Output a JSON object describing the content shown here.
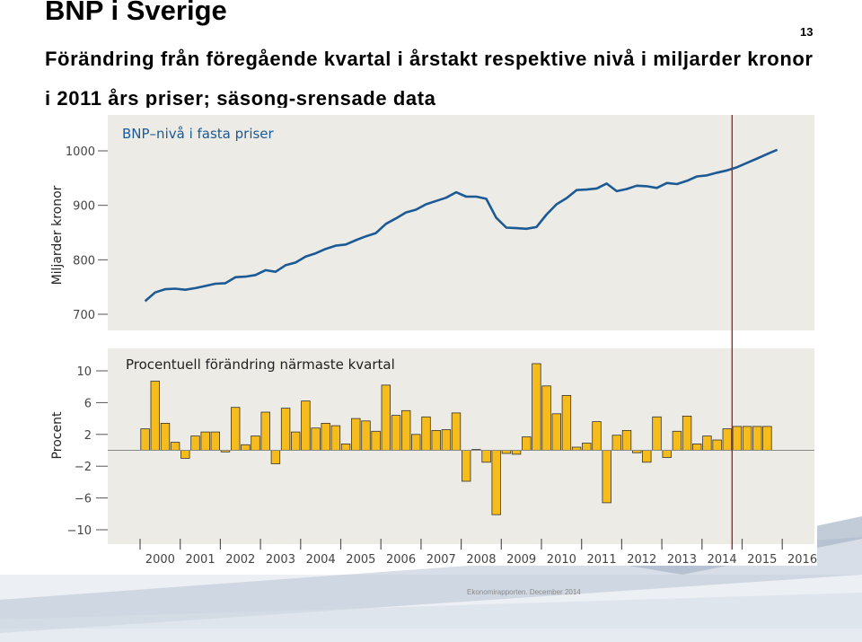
{
  "header": {
    "title": "BNP i Sverige",
    "subtitle": "Förändring från föregående kvartal i årstakt respektive nivå i miljarder kronor i 2011 års priser; säsong-srensade data",
    "page_number": "13"
  },
  "footer": {
    "text": "Ekonomirapporten. December 2014"
  },
  "colors": {
    "line": "#1c5a96",
    "bar": "#f5bc1c",
    "bar_stroke": "#333333",
    "forecast_line": "#a0282a",
    "panel_bg": "#ecebe6"
  },
  "chart_data": [
    {
      "type": "line",
      "title": "BNP–nivå i fasta priser",
      "ylabel": "Miljarder kronor",
      "ylim": [
        700,
        1000
      ],
      "yticks": [
        "1000",
        "900",
        "800",
        "700"
      ],
      "ytick_values": [
        1000,
        900,
        800,
        700
      ],
      "x_labels": [
        "2000",
        "2001",
        "2002",
        "2003",
        "2004",
        "2005",
        "2006",
        "2007",
        "2008",
        "2009",
        "2010",
        "2011",
        "2012",
        "2013",
        "2014",
        "2015",
        "2016"
      ],
      "x_start": 2000.0,
      "x_step": 0.25,
      "forecast_from": 2014.75,
      "series": [
        {
          "values": [
            724,
            740,
            746,
            747,
            745,
            748,
            752,
            756,
            757,
            768,
            769,
            772,
            781,
            778,
            790,
            795,
            806,
            812,
            820,
            826,
            828,
            836,
            843,
            849,
            866,
            876,
            887,
            892,
            902,
            908,
            914,
            924,
            916,
            916,
            912,
            877,
            859,
            858,
            857,
            860,
            883,
            902,
            913,
            928,
            929,
            931,
            940,
            926,
            930,
            936,
            935,
            932,
            941,
            939,
            945,
            953,
            955,
            960,
            964,
            970,
            978,
            986,
            994,
            1002
          ]
        }
      ]
    },
    {
      "type": "bar",
      "title": "Procentuell förändring närmaste kvartal",
      "ylabel": "Procent",
      "ylim": [
        -10,
        10
      ],
      "yticks": [
        "10",
        "6",
        "2",
        "−2",
        "−6",
        "−10"
      ],
      "ytick_values": [
        10,
        6,
        2,
        -2,
        -6,
        -10
      ],
      "x_labels": [
        "2000",
        "2001",
        "2002",
        "2003",
        "2004",
        "2005",
        "2006",
        "2007",
        "2008",
        "2009",
        "2010",
        "2011",
        "2012",
        "2013",
        "2014",
        "2015",
        "2016"
      ],
      "x_start": 2000.0,
      "x_step": 0.25,
      "forecast_from": 2014.75,
      "series": [
        {
          "values": [
            2.7,
            8.7,
            3.4,
            1.0,
            -1.0,
            1.8,
            2.3,
            2.3,
            -0.2,
            5.4,
            0.7,
            1.8,
            4.8,
            -1.7,
            5.3,
            2.3,
            6.2,
            2.8,
            3.4,
            3.1,
            0.8,
            4.0,
            3.7,
            2.4,
            8.2,
            4.4,
            5.0,
            2.0,
            4.2,
            2.5,
            2.6,
            4.7,
            -3.9,
            0.1,
            -1.5,
            -8.1,
            -0.4,
            -0.5,
            1.7,
            10.9,
            8.1,
            4.6,
            6.9,
            0.4,
            0.9,
            3.6,
            -6.6,
            1.9,
            2.5,
            -0.3,
            -1.5,
            4.2,
            -0.9,
            2.4,
            4.3,
            0.8,
            1.8,
            1.3,
            2.7,
            3.0,
            3.0,
            3.0,
            3.0
          ]
        }
      ]
    }
  ]
}
